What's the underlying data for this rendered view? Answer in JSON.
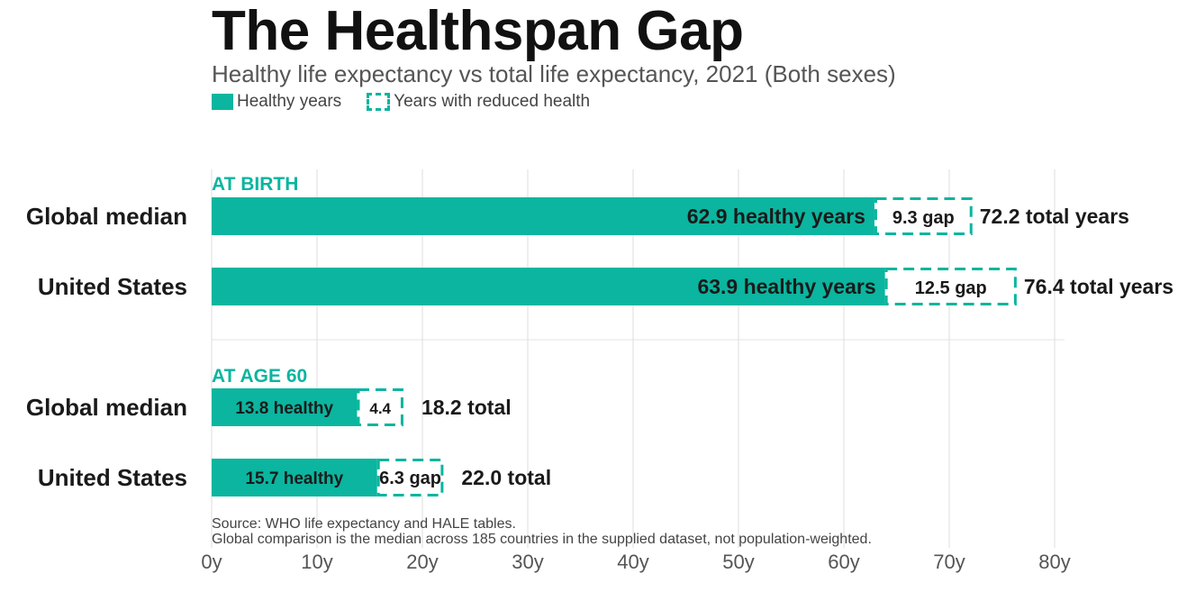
{
  "title": "The Healthspan Gap",
  "subtitle": "Healthy life expectancy vs total life expectancy, 2021 (Both sexes)",
  "legend": {
    "healthy": "Healthy years",
    "reduced": "Years with reduced health"
  },
  "source_line1": "Source: WHO life expectancy and HALE tables.",
  "source_line2": "Global comparison is the median across 185 countries in the supplied dataset, not population-weighted.",
  "colors": {
    "healthy": "#0bb59f",
    "gap_border": "#0bb59f",
    "section_label": "#0bb59f",
    "grid": "#dddddd"
  },
  "chart_data": {
    "type": "bar",
    "orientation": "horizontal",
    "stacked": true,
    "xlim": [
      0,
      80
    ],
    "x_ticks": [
      "0y",
      "10y",
      "20y",
      "30y",
      "40y",
      "50y",
      "60y",
      "70y",
      "80y"
    ],
    "x_tick_values": [
      0,
      10,
      20,
      30,
      40,
      50,
      60,
      70,
      80
    ],
    "grid": true,
    "legend_position": "top-left",
    "groups": [
      {
        "label": "AT BIRTH",
        "rows": [
          {
            "category": "Global median",
            "healthy": 62.9,
            "gap": 9.3,
            "total": 72.2,
            "healthy_label": "62.9 healthy years",
            "gap_label": "9.3 gap",
            "total_label": "72.2 total years"
          },
          {
            "category": "United States",
            "healthy": 63.9,
            "gap": 12.5,
            "total": 76.4,
            "healthy_label": "63.9 healthy years",
            "gap_label": "12.5 gap",
            "total_label": "76.4 total years"
          }
        ]
      },
      {
        "label": "AT AGE 60",
        "rows": [
          {
            "category": "Global median",
            "healthy": 13.8,
            "gap": 4.4,
            "total": 18.2,
            "healthy_label": "13.8 healthy",
            "gap_label": "4.4",
            "total_label": "18.2 total"
          },
          {
            "category": "United States",
            "healthy": 15.7,
            "gap": 6.3,
            "total": 22.0,
            "healthy_label": "15.7 healthy",
            "gap_label": "6.3 gap",
            "total_label": "22.0 total"
          }
        ]
      }
    ]
  }
}
